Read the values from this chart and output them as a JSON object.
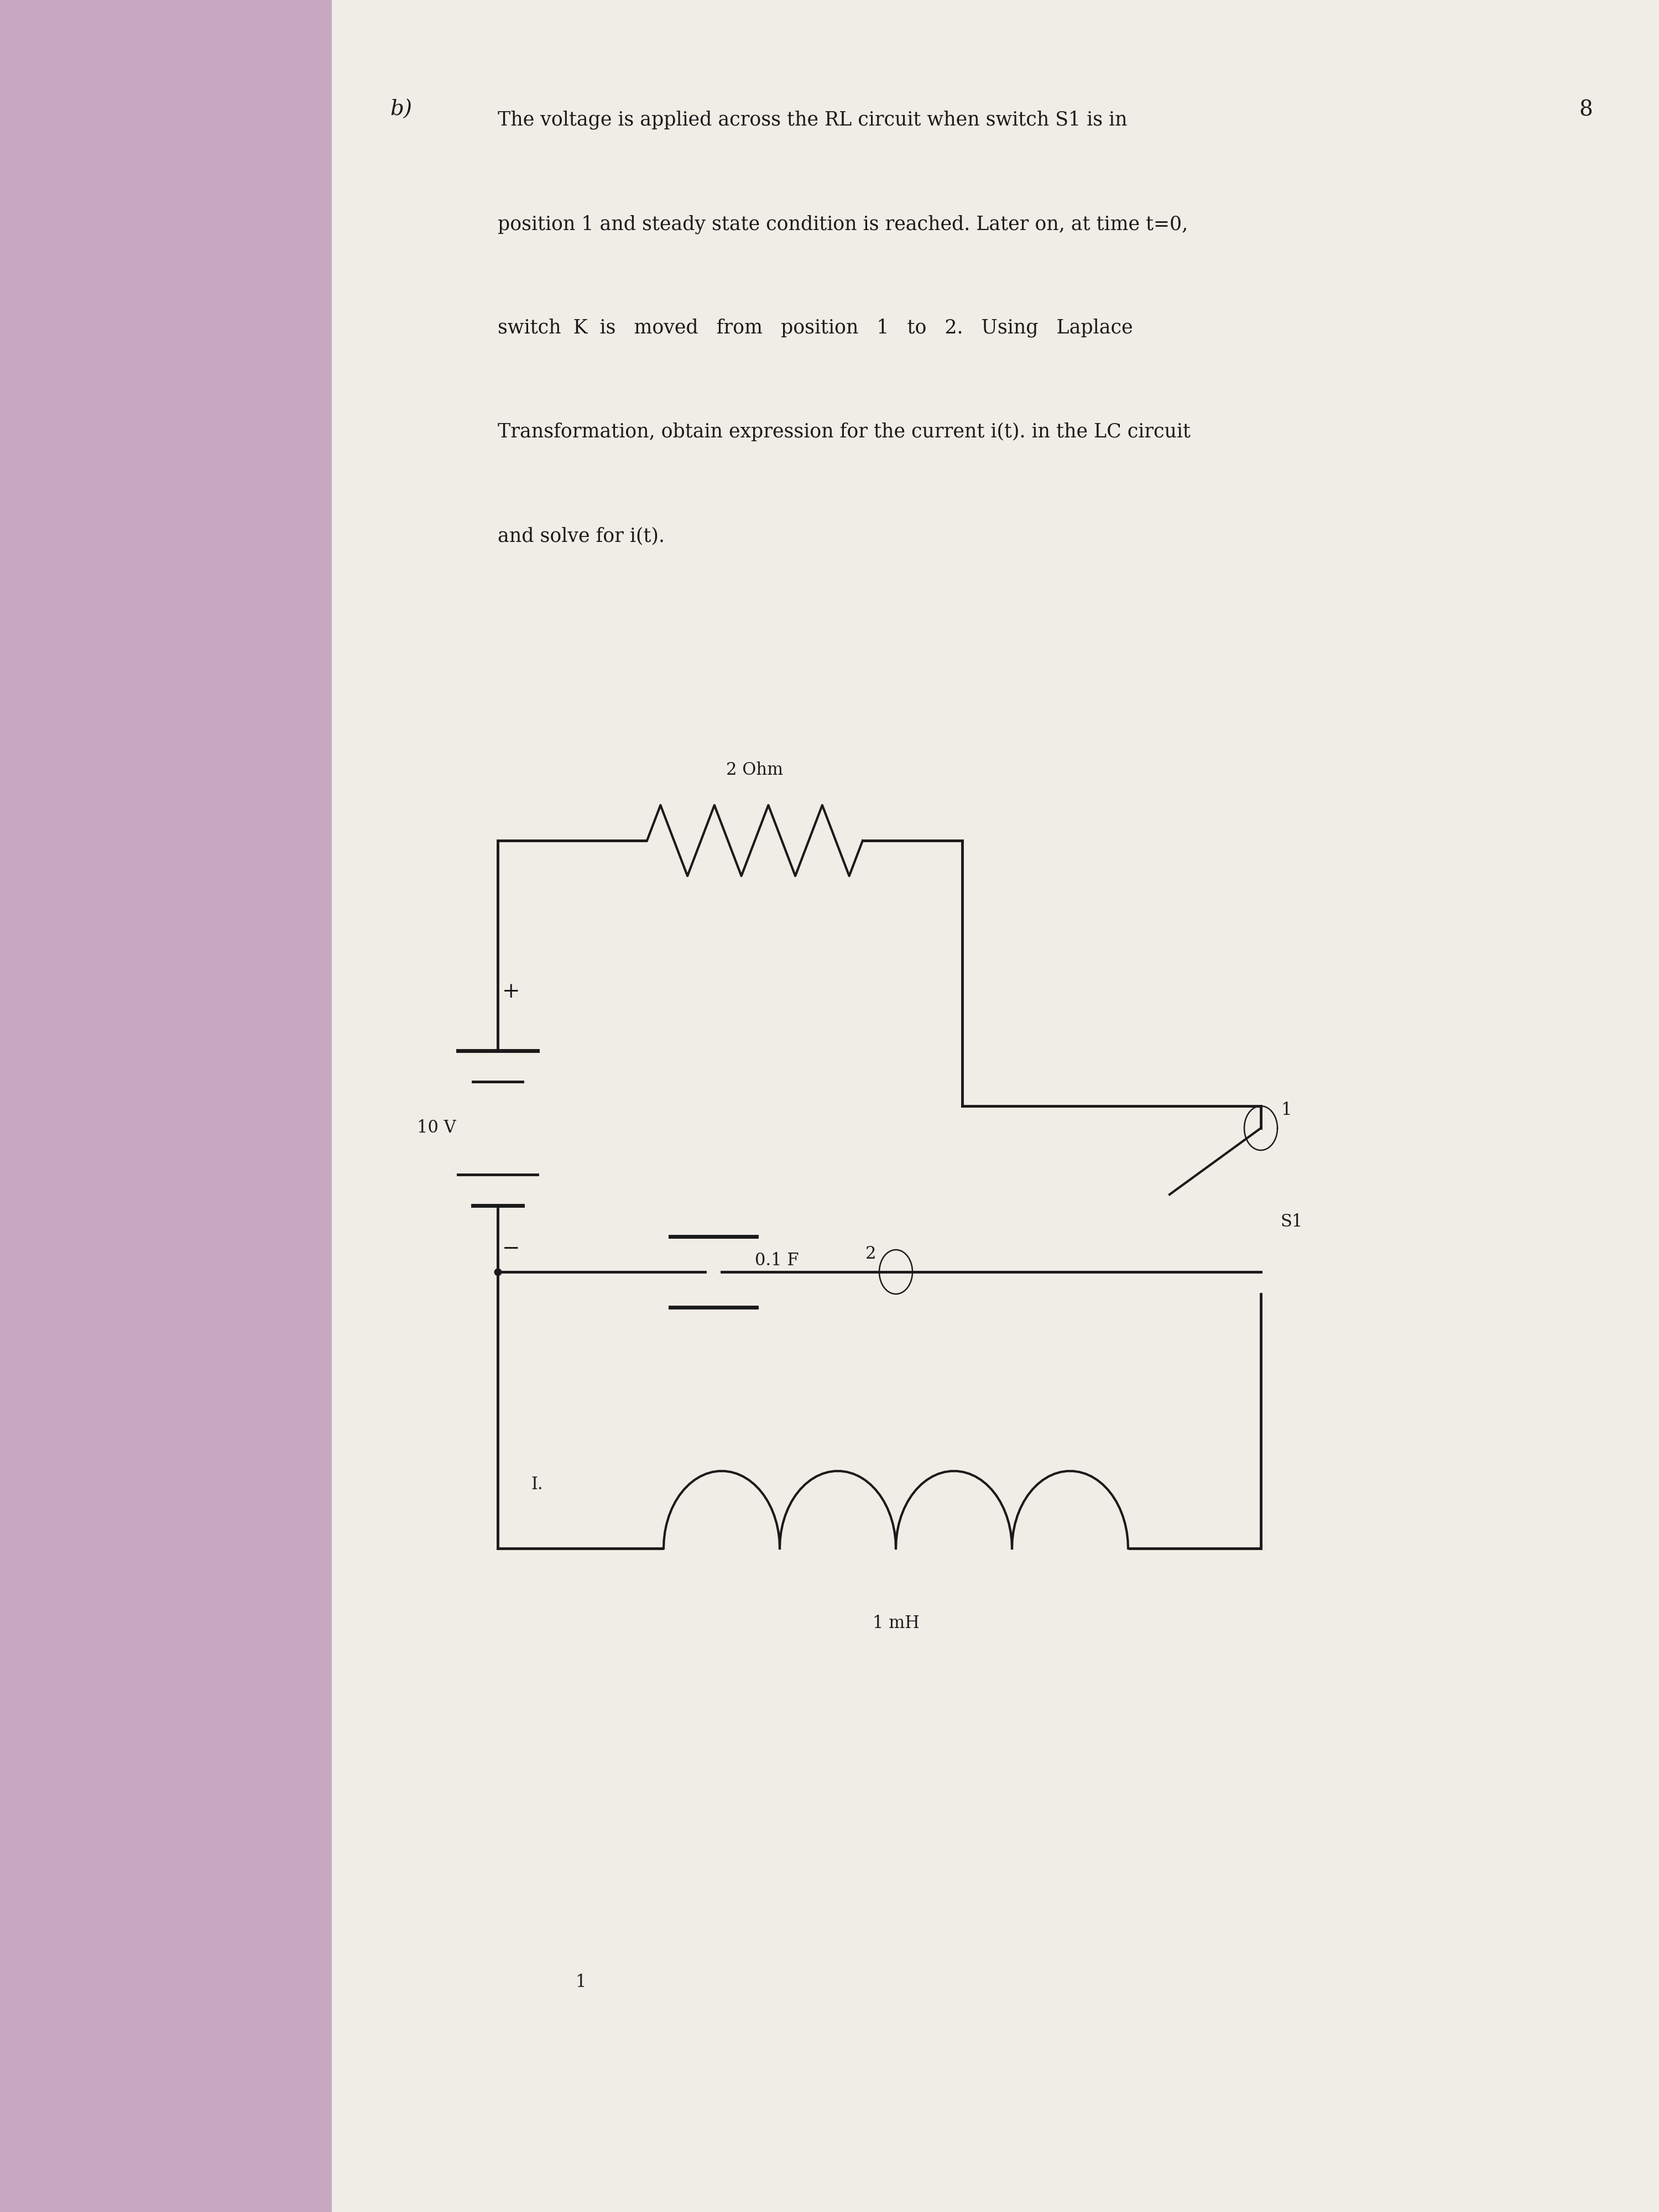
{
  "bg_color": "#c8a8c0",
  "paper_color": "#f0ece6",
  "font_color": "#1a1a1a",
  "line_color": "#1a1a1a",
  "question_label": "b)",
  "question_number": "8",
  "text_lines": [
    "The voltage is applied across the RL circuit when switch S1 is in",
    "position 1 and steady state condition is reached. Later on, at time t=0,",
    "switch  K  is   moved   from   position   1   to   2.   Using   Laplace",
    "Transformation, obtain expression for the current i(t). in the LC circuit",
    "and solve for i(t)."
  ],
  "voltage_label": "10 V",
  "resistor_label": "2 Ohm",
  "capacitor_label": "0.1 F",
  "inductor_label": "1 mH",
  "switch_label": "S1",
  "switch_pos1": "1",
  "switch_pos2": "2",
  "current_label": "I.",
  "page_num": "1",
  "text_fontsize": 28,
  "label_fontsize": 22
}
